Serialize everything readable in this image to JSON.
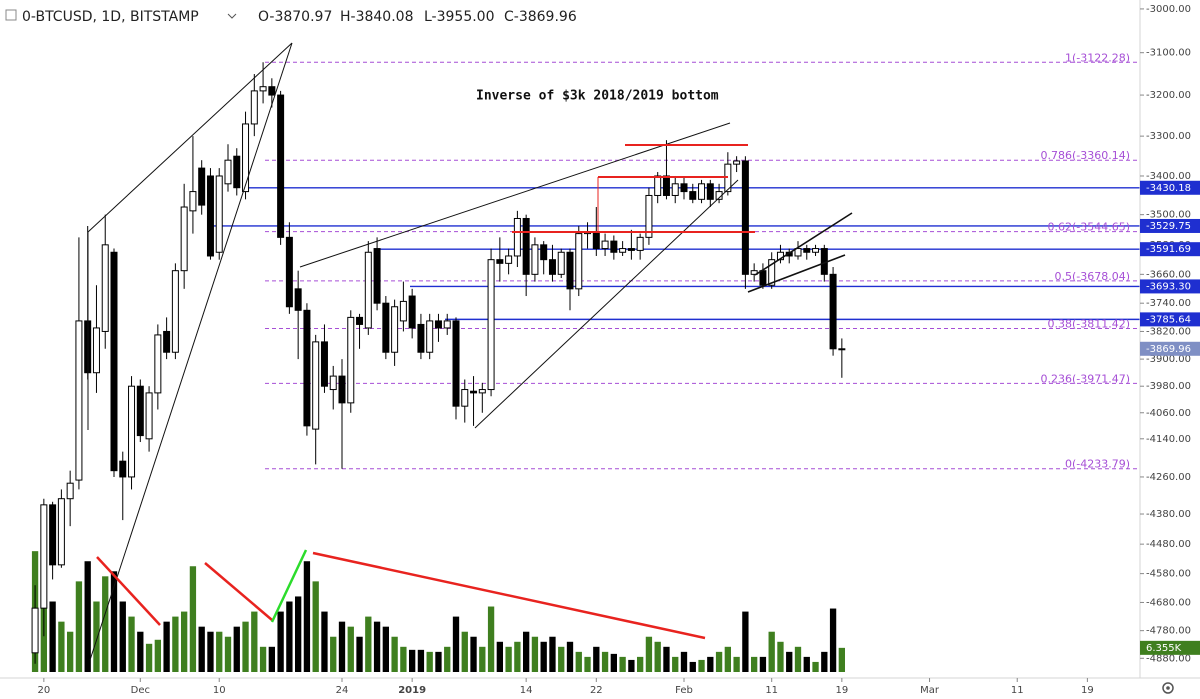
{
  "chart_data": {
    "type": "candlestick",
    "symbol": "0-BTCUSD, 1D, BITSTAMP",
    "ohlc_labels": [
      "O-3870.97",
      "H-3840.08",
      "L-3955.00",
      "C-3869.96"
    ],
    "annotation": "Inverse of $3k 2018/2019 bottom",
    "log_scale": true,
    "grid": false,
    "up_color": "#ffffff",
    "down_color": "#000000",
    "up_volume_color": "#3f7f1f",
    "down_volume_color": "#000000",
    "level_color": "#1f2fd0",
    "fib_color": "#a64fd6",
    "xlim": [
      "2018-11-15",
      "2019-03-25"
    ],
    "xticks": [
      {
        "value": "2018-11-20",
        "label": "20"
      },
      {
        "value": "2018-12-01",
        "label": "Dec"
      },
      {
        "value": "2018-12-10",
        "label": "10"
      },
      {
        "value": "2018-12-24",
        "label": "24"
      },
      {
        "value": "2019-01-01",
        "label": "2019",
        "bold": true
      },
      {
        "value": "2019-01-14",
        "label": "14"
      },
      {
        "value": "2019-01-22",
        "label": "22"
      },
      {
        "value": "2019-02-01",
        "label": "Feb"
      },
      {
        "value": "2019-02-11",
        "label": "11"
      },
      {
        "value": "2019-02-19",
        "label": "19"
      },
      {
        "value": "2019-03-01",
        "label": "Mar"
      },
      {
        "value": "2019-03-11",
        "label": "11"
      },
      {
        "value": "2019-03-19",
        "label": "19"
      }
    ],
    "ylim": [
      -2980,
      -4960
    ],
    "yticks": [
      {
        "value": -3000,
        "label": "-3000.00"
      },
      {
        "value": -3100,
        "label": "-3100.00"
      },
      {
        "value": -3200,
        "label": "-3200.00"
      },
      {
        "value": -3300,
        "label": "-3300.00"
      },
      {
        "value": -3400,
        "label": "-3400.00"
      },
      {
        "value": -3500,
        "label": "-3500.00"
      },
      {
        "value": -3580,
        "label": "-3580.00"
      },
      {
        "value": -3660,
        "label": "-3660.00"
      },
      {
        "value": -3740,
        "label": "-3740.00"
      },
      {
        "value": -3820,
        "label": "-3820.00"
      },
      {
        "value": -3900,
        "label": "-3900.00"
      },
      {
        "value": -3980,
        "label": "-3980.00"
      },
      {
        "value": -4060,
        "label": "-4060.00"
      },
      {
        "value": -4140,
        "label": "-4140.00"
      },
      {
        "value": -4260,
        "label": "-4260.00"
      },
      {
        "value": -4380,
        "label": "-4380.00"
      },
      {
        "value": -4480,
        "label": "-4480.00"
      },
      {
        "value": -4580,
        "label": "-4580.00"
      },
      {
        "value": -4680,
        "label": "-4680.00"
      },
      {
        "value": -4780,
        "label": "-4780.00"
      },
      {
        "value": -4880,
        "label": "-4880.00"
      }
    ],
    "levels": [
      {
        "value": -3430.18,
        "label": "-3430.18"
      },
      {
        "value": -3529.75,
        "label": "-3529.75"
      },
      {
        "value": -3591.69,
        "label": "-3591.69"
      },
      {
        "value": -3693.3,
        "label": "-3693.30"
      },
      {
        "value": -3785.64,
        "label": "-3785.64"
      }
    ],
    "fib_levels": [
      {
        "value": -3122.28,
        "label": "1(-3122.28)"
      },
      {
        "value": -3360.14,
        "label": "0.786(-3360.14)"
      },
      {
        "value": -3544.65,
        "label": "0.62(-3544.65)"
      },
      {
        "value": -3678.04,
        "label": "0.5(-3678.04)"
      },
      {
        "value": -3811.42,
        "label": "0.38(-3811.42)"
      },
      {
        "value": -3971.47,
        "label": "0.236(-3971.47)"
      },
      {
        "value": -4233.79,
        "label": "0(-4233.79)"
      }
    ],
    "x": [
      "2018-11-19",
      "2018-11-20",
      "2018-11-21",
      "2018-11-22",
      "2018-11-23",
      "2018-11-24",
      "2018-11-25",
      "2018-11-26",
      "2018-11-27",
      "2018-11-28",
      "2018-11-29",
      "2018-11-30",
      "2018-12-01",
      "2018-12-02",
      "2018-12-03",
      "2018-12-04",
      "2018-12-05",
      "2018-12-06",
      "2018-12-07",
      "2018-12-08",
      "2018-12-09",
      "2018-12-10",
      "2018-12-11",
      "2018-12-12",
      "2018-12-13",
      "2018-12-14",
      "2018-12-15",
      "2018-12-16",
      "2018-12-17",
      "2018-12-18",
      "2018-12-19",
      "2018-12-20",
      "2018-12-21",
      "2018-12-22",
      "2018-12-23",
      "2018-12-24",
      "2018-12-25",
      "2018-12-26",
      "2018-12-27",
      "2018-12-28",
      "2018-12-29",
      "2018-12-30",
      "2018-12-31",
      "2019-01-01",
      "2019-01-02",
      "2019-01-03",
      "2019-01-04",
      "2019-01-05",
      "2019-01-06",
      "2019-01-07",
      "2019-01-08",
      "2019-01-09",
      "2019-01-10",
      "2019-01-11",
      "2019-01-12",
      "2019-01-13",
      "2019-01-14",
      "2019-01-15",
      "2019-01-16",
      "2019-01-17",
      "2019-01-18",
      "2019-01-19",
      "2019-01-20",
      "2019-01-21",
      "2019-01-22",
      "2019-01-23",
      "2019-01-24",
      "2019-01-25",
      "2019-01-26",
      "2019-01-27",
      "2019-01-28",
      "2019-01-29",
      "2019-01-30",
      "2019-01-31",
      "2019-02-01",
      "2019-02-02",
      "2019-02-03",
      "2019-02-04",
      "2019-02-05",
      "2019-02-06",
      "2019-02-07",
      "2019-02-08",
      "2019-02-09",
      "2019-02-10",
      "2019-02-11",
      "2019-02-12",
      "2019-02-13",
      "2019-02-14",
      "2019-02-15",
      "2019-02-16",
      "2019-02-17",
      "2019-02-18",
      "2019-02-19"
    ],
    "open": [
      -4860,
      -4700,
      -4350,
      -4550,
      -4330,
      -4270,
      -3790,
      -3940,
      -3820,
      -3600,
      -4210,
      -4260,
      -3980,
      -4140,
      -4000,
      -3820,
      -3880,
      -3650,
      -3490,
      -3380,
      -3400,
      -3600,
      -3420,
      -3350,
      -3440,
      -3270,
      -3190,
      -3180,
      -3200,
      -3560,
      -3700,
      -3760,
      -4110,
      -3850,
      -3990,
      -3950,
      -4030,
      -3780,
      -3810,
      -3590,
      -3740,
      -3880,
      -3790,
      -3720,
      -3800,
      -3880,
      -3790,
      -3810,
      -3790,
      -4040,
      -3995,
      -4000,
      -3990,
      -3620,
      -3630,
      -3610,
      -3510,
      -3660,
      -3580,
      -3620,
      -3660,
      -3600,
      -3700,
      -3550,
      -3545,
      -3590,
      -3570,
      -3600,
      -3590,
      -3595,
      -3560,
      -3450,
      -3400,
      -3450,
      -3420,
      -3440,
      -3460,
      -3420,
      -3460,
      -3440,
      -3370,
      -3362,
      -3660,
      -3650,
      -3690,
      -3620,
      -3600,
      -3610,
      -3590,
      -3600,
      -3590,
      -3660,
      -3870.97
    ],
    "high": [
      -4620,
      -4330,
      -4340,
      -4300,
      -4240,
      -3560,
      -3530,
      -3690,
      -3500,
      -3590,
      -4180,
      -3950,
      -3960,
      -3980,
      -3800,
      -3780,
      -3630,
      -3420,
      -3300,
      -3360,
      -3380,
      -3380,
      -3320,
      -3330,
      -3240,
      -3150,
      -3122.28,
      -3160,
      -3190,
      -3520,
      -3650,
      -3740,
      -3830,
      -3800,
      -3920,
      -3900,
      -3760,
      -3770,
      -3570,
      -3560,
      -3720,
      -3730,
      -3680,
      -3700,
      -3770,
      -3770,
      -3770,
      -3770,
      -3780,
      -3960,
      -3950,
      -3970,
      -3590,
      -3560,
      -3590,
      -3490,
      -3500,
      -3560,
      -3570,
      -3580,
      -3590,
      -3590,
      -3530,
      -3520,
      -3480,
      -3550,
      -3555,
      -3570,
      -3540,
      -3550,
      -3430,
      -3390,
      -3310,
      -3400,
      -3400,
      -3420,
      -3410,
      -3410,
      -3420,
      -3340,
      -3350,
      -3350,
      -3630,
      -3630,
      -3600,
      -3580,
      -3590,
      -3570,
      -3580,
      -3580,
      -3580,
      -3640,
      -3840.08
    ],
    "low": [
      -4900,
      -4800,
      -4600,
      -4560,
      -4420,
      -4300,
      -3960,
      -4000,
      -3870,
      -4260,
      -4400,
      -4300,
      -4150,
      -4180,
      -4050,
      -3900,
      -3900,
      -3700,
      -3550,
      -3500,
      -3620,
      -3620,
      -3440,
      -3450,
      -3460,
      -3300,
      -3220,
      -3230,
      -3580,
      -3770,
      -3900,
      -4130,
      -4220,
      -4000,
      -4050,
      -4233.79,
      -4060,
      -3870,
      -3830,
      -3760,
      -3900,
      -3920,
      -3820,
      -3840,
      -3900,
      -3900,
      -3850,
      -3830,
      -4080,
      -4090,
      -4100,
      -4060,
      -4010,
      -3680,
      -3660,
      -3640,
      -3720,
      -3680,
      -3660,
      -3680,
      -3670,
      -3760,
      -3720,
      -3590,
      -3610,
      -3610,
      -3620,
      -3610,
      -3620,
      -3620,
      -3580,
      -3470,
      -3460,
      -3470,
      -3460,
      -3470,
      -3470,
      -3480,
      -3470,
      -3450,
      -3390,
      -3700,
      -3680,
      -3700,
      -3700,
      -3630,
      -3630,
      -3620,
      -3620,
      -3610,
      -3680,
      -3890,
      -3955
    ],
    "close": [
      -4700,
      -4350,
      -4550,
      -4330,
      -4280,
      -3790,
      -3940,
      -3810,
      -3580,
      -4240,
      -4260,
      -3980,
      -4130,
      -4000,
      -3830,
      -3880,
      -3650,
      -3480,
      -3440,
      -3475,
      -3610,
      -3400,
      -3360,
      -3430,
      -3270,
      -3190,
      -3180,
      -3200,
      -3560,
      -3750,
      -3760,
      -4100,
      -3850,
      -3980,
      -3950,
      -4030,
      -3780,
      -3800,
      -3600,
      -3740,
      -3880,
      -3750,
      -3735,
      -3810,
      -3880,
      -3790,
      -3810,
      -3790,
      -4040,
      -3990,
      -4000,
      -3990,
      -3620,
      -3630,
      -3610,
      -3510,
      -3660,
      -3580,
      -3620,
      -3660,
      -3600,
      -3700,
      -3550,
      -3545,
      -3590,
      -3570,
      -3600,
      -3590,
      -3595,
      -3560,
      -3450,
      -3400,
      -3450,
      -3420,
      -3440,
      -3460,
      -3420,
      -3460,
      -3440,
      -3370,
      -3362,
      -3660,
      -3650,
      -3690,
      -3620,
      -3600,
      -3610,
      -3590,
      -3600,
      -3590,
      -3660,
      -3870,
      -3869.96
    ],
    "volume": [
      31800,
      26500,
      18550,
      13250,
      10600,
      23850,
      29150,
      18550,
      25180,
      26500,
      18550,
      14580,
      10600,
      7420,
      8480,
      13250,
      14580,
      15900,
      27830,
      11930,
      10600,
      10600,
      9280,
      11930,
      13250,
      15900,
      6630,
      6630,
      15900,
      18550,
      19880,
      29150,
      23850,
      15900,
      9280,
      13250,
      11930,
      9280,
      14580,
      13250,
      11930,
      9280,
      6630,
      5830,
      5830,
      5300,
      5300,
      6630,
      14580,
      10600,
      9280,
      6630,
      17230,
      7950,
      6630,
      7950,
      10600,
      9280,
      7950,
      9280,
      6630,
      7950,
      5300,
      3980,
      6630,
      5300,
      4770,
      3980,
      3180,
      3980,
      9280,
      7950,
      6630,
      3980,
      5300,
      2650,
      3180,
      3980,
      5300,
      6630,
      3980,
      15900,
      3980,
      3980,
      10600,
      7950,
      5300,
      6630,
      3980,
      2650,
      5300,
      16700,
      6355
    ],
    "volume_ylim": [
      0,
      50000
    ],
    "volume_last_label": "6.355K"
  }
}
